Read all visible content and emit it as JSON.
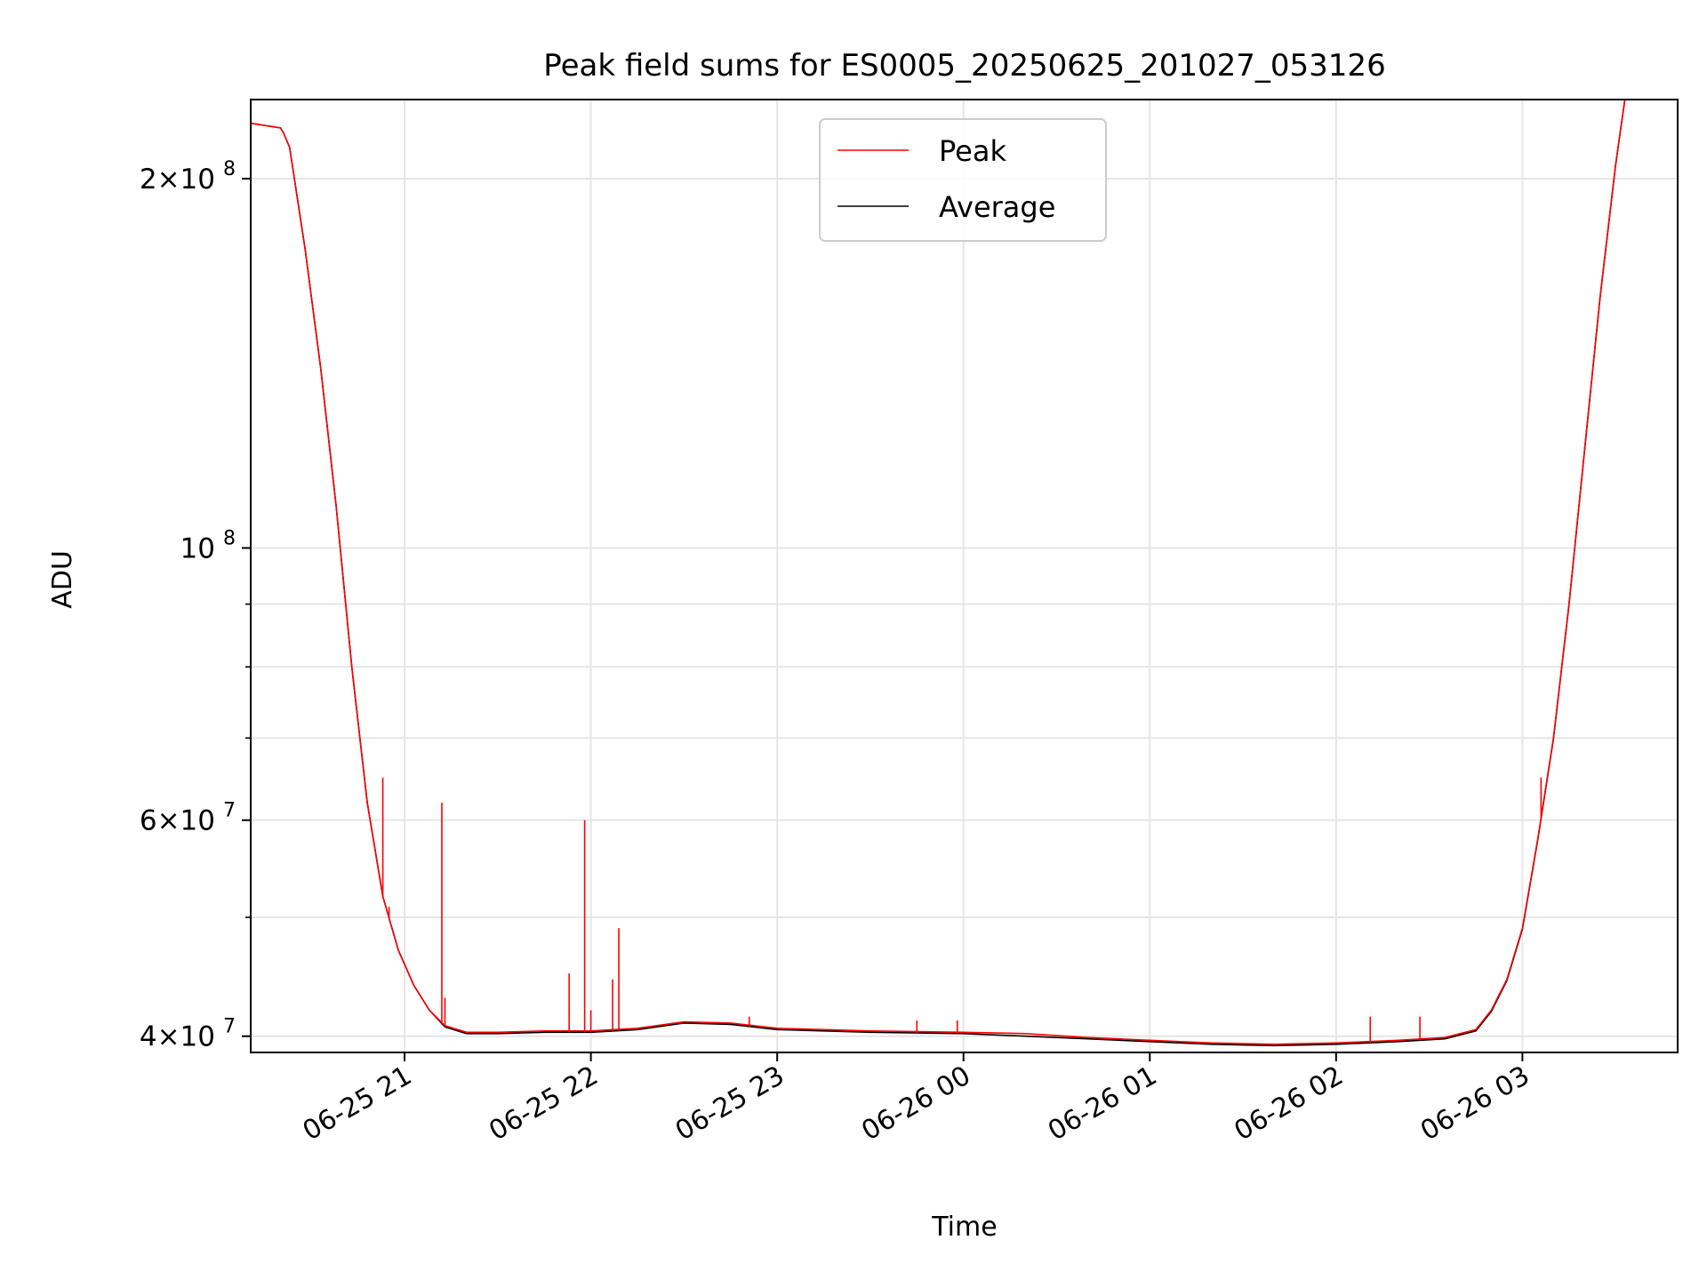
{
  "chart_data": {
    "type": "line",
    "title": "Peak field sums for ES0005_20250625_201027_053126",
    "xlabel": "Time",
    "ylabel": "ADU",
    "y_scale": "log",
    "ylim": [
      38800000,
      232000000
    ],
    "xlim": [
      "2025-06-25 20:10:27",
      "2025-06-26 03:50:00"
    ],
    "grid": true,
    "legend_position": "upper center",
    "x_ticks": [
      {
        "t": "2025-06-25 21:00",
        "label": "06-25 21"
      },
      {
        "t": "2025-06-25 22:00",
        "label": "06-25 22"
      },
      {
        "t": "2025-06-25 23:00",
        "label": "06-25 23"
      },
      {
        "t": "2025-06-26 00:00",
        "label": "06-26 00"
      },
      {
        "t": "2025-06-26 01:00",
        "label": "06-26 01"
      },
      {
        "t": "2025-06-26 02:00",
        "label": "06-26 02"
      },
      {
        "t": "2025-06-26 03:00",
        "label": "06-26 03"
      }
    ],
    "y_ticks": [
      {
        "value": 40000000,
        "base": "4",
        "exp": "7"
      },
      {
        "value": 60000000,
        "base": "6",
        "exp": "7"
      },
      {
        "value": 100000000,
        "base": "",
        "exp": "8"
      },
      {
        "value": 200000000,
        "base": "2",
        "exp": "8"
      }
    ],
    "y_minor_ticks": [
      50000000,
      70000000,
      80000000,
      90000000
    ],
    "series": [
      {
        "name": "Peak",
        "color": "#ff0000",
        "x": [
          "2025-06-25 20:10",
          "2025-06-25 20:20",
          "2025-06-25 20:21",
          "2025-06-25 20:23",
          "2025-06-25 20:28",
          "2025-06-25 20:33",
          "2025-06-25 20:38",
          "2025-06-25 20:43",
          "2025-06-25 20:48",
          "2025-06-25 20:53",
          "2025-06-25 20:58",
          "2025-06-25 21:03",
          "2025-06-25 21:08",
          "2025-06-25 21:13",
          "2025-06-25 21:20",
          "2025-06-25 21:30",
          "2025-06-25 21:45",
          "2025-06-25 22:00",
          "2025-06-25 22:15",
          "2025-06-25 22:30",
          "2025-06-25 22:45",
          "2025-06-25 23:00",
          "2025-06-25 23:30",
          "2025-06-26 00:00",
          "2025-06-26 00:20",
          "2025-06-26 00:40",
          "2025-06-26 01:00",
          "2025-06-26 01:20",
          "2025-06-26 01:40",
          "2025-06-26 02:00",
          "2025-06-26 02:20",
          "2025-06-26 02:35",
          "2025-06-26 02:45",
          "2025-06-26 02:50",
          "2025-06-26 02:55",
          "2025-06-26 03:00",
          "2025-06-26 03:05",
          "2025-06-26 03:10",
          "2025-06-26 03:15",
          "2025-06-26 03:20",
          "2025-06-26 03:25",
          "2025-06-26 03:30",
          "2025-06-26 03:33"
        ],
        "y": [
          222000000,
          220000000,
          218000000,
          212000000,
          175000000,
          140000000,
          108000000,
          80000000,
          62000000,
          52000000,
          47000000,
          44000000,
          42000000,
          40800000,
          40300000,
          40300000,
          40400000,
          40400000,
          40600000,
          41100000,
          41000000,
          40600000,
          40400000,
          40300000,
          40200000,
          39900000,
          39700000,
          39500000,
          39400000,
          39500000,
          39700000,
          39900000,
          40500000,
          42000000,
          44500000,
          49000000,
          58000000,
          70000000,
          90000000,
          120000000,
          160000000,
          205000000,
          232000000
        ],
        "spikes": [
          {
            "x": "2025-06-25 20:53",
            "y": 65000000
          },
          {
            "x": "2025-06-25 20:55",
            "y": 51000000
          },
          {
            "x": "2025-06-25 21:12",
            "y": 62000000
          },
          {
            "x": "2025-06-25 21:13",
            "y": 43000000
          },
          {
            "x": "2025-06-25 21:53",
            "y": 45000000
          },
          {
            "x": "2025-06-25 21:58",
            "y": 60000000
          },
          {
            "x": "2025-06-25 22:00",
            "y": 42000000
          },
          {
            "x": "2025-06-25 22:07",
            "y": 44500000
          },
          {
            "x": "2025-06-25 22:09",
            "y": 49000000
          },
          {
            "x": "2025-06-25 22:51",
            "y": 41500000
          },
          {
            "x": "2025-06-25 23:45",
            "y": 41200000
          },
          {
            "x": "2025-06-25 23:58",
            "y": 41200000
          },
          {
            "x": "2025-06-26 02:11",
            "y": 41500000
          },
          {
            "x": "2025-06-26 02:27",
            "y": 41500000
          },
          {
            "x": "2025-06-26 03:06",
            "y": 65000000
          }
        ]
      },
      {
        "name": "Average",
        "color": "#000000",
        "x": [
          "2025-06-25 20:10",
          "2025-06-25 20:20",
          "2025-06-25 20:21",
          "2025-06-25 20:23",
          "2025-06-25 20:28",
          "2025-06-25 20:33",
          "2025-06-25 20:38",
          "2025-06-25 20:43",
          "2025-06-25 20:48",
          "2025-06-25 20:53",
          "2025-06-25 20:58",
          "2025-06-25 21:03",
          "2025-06-25 21:08",
          "2025-06-25 21:13",
          "2025-06-25 21:20",
          "2025-06-25 21:30",
          "2025-06-25 21:45",
          "2025-06-25 22:00",
          "2025-06-25 22:15",
          "2025-06-25 22:30",
          "2025-06-25 22:45",
          "2025-06-25 23:00",
          "2025-06-25 23:30",
          "2025-06-26 00:00",
          "2025-06-26 00:20",
          "2025-06-26 00:40",
          "2025-06-26 01:00",
          "2025-06-26 01:20",
          "2025-06-26 01:40",
          "2025-06-26 02:00",
          "2025-06-26 02:20",
          "2025-06-26 02:35",
          "2025-06-26 02:45",
          "2025-06-26 02:50",
          "2025-06-26 02:55",
          "2025-06-26 03:00",
          "2025-06-26 03:05",
          "2025-06-26 03:10",
          "2025-06-26 03:15",
          "2025-06-26 03:20",
          "2025-06-26 03:25",
          "2025-06-26 03:30",
          "2025-06-26 03:33"
        ],
        "y": [
          222000000,
          220000000,
          218000000,
          212000000,
          175000000,
          140000000,
          108000000,
          80000000,
          62000000,
          52000000,
          47000000,
          44000000,
          42000000,
          40700000,
          40200000,
          40200000,
          40300000,
          40300000,
          40500000,
          41000000,
          40900000,
          40500000,
          40300000,
          40200000,
          40000000,
          39800000,
          39600000,
          39400000,
          39300000,
          39400000,
          39600000,
          39800000,
          40400000,
          41900000,
          44400000,
          48900000,
          57900000,
          69900000,
          89900000,
          119900000,
          159900000,
          204900000,
          232000000
        ]
      }
    ]
  }
}
